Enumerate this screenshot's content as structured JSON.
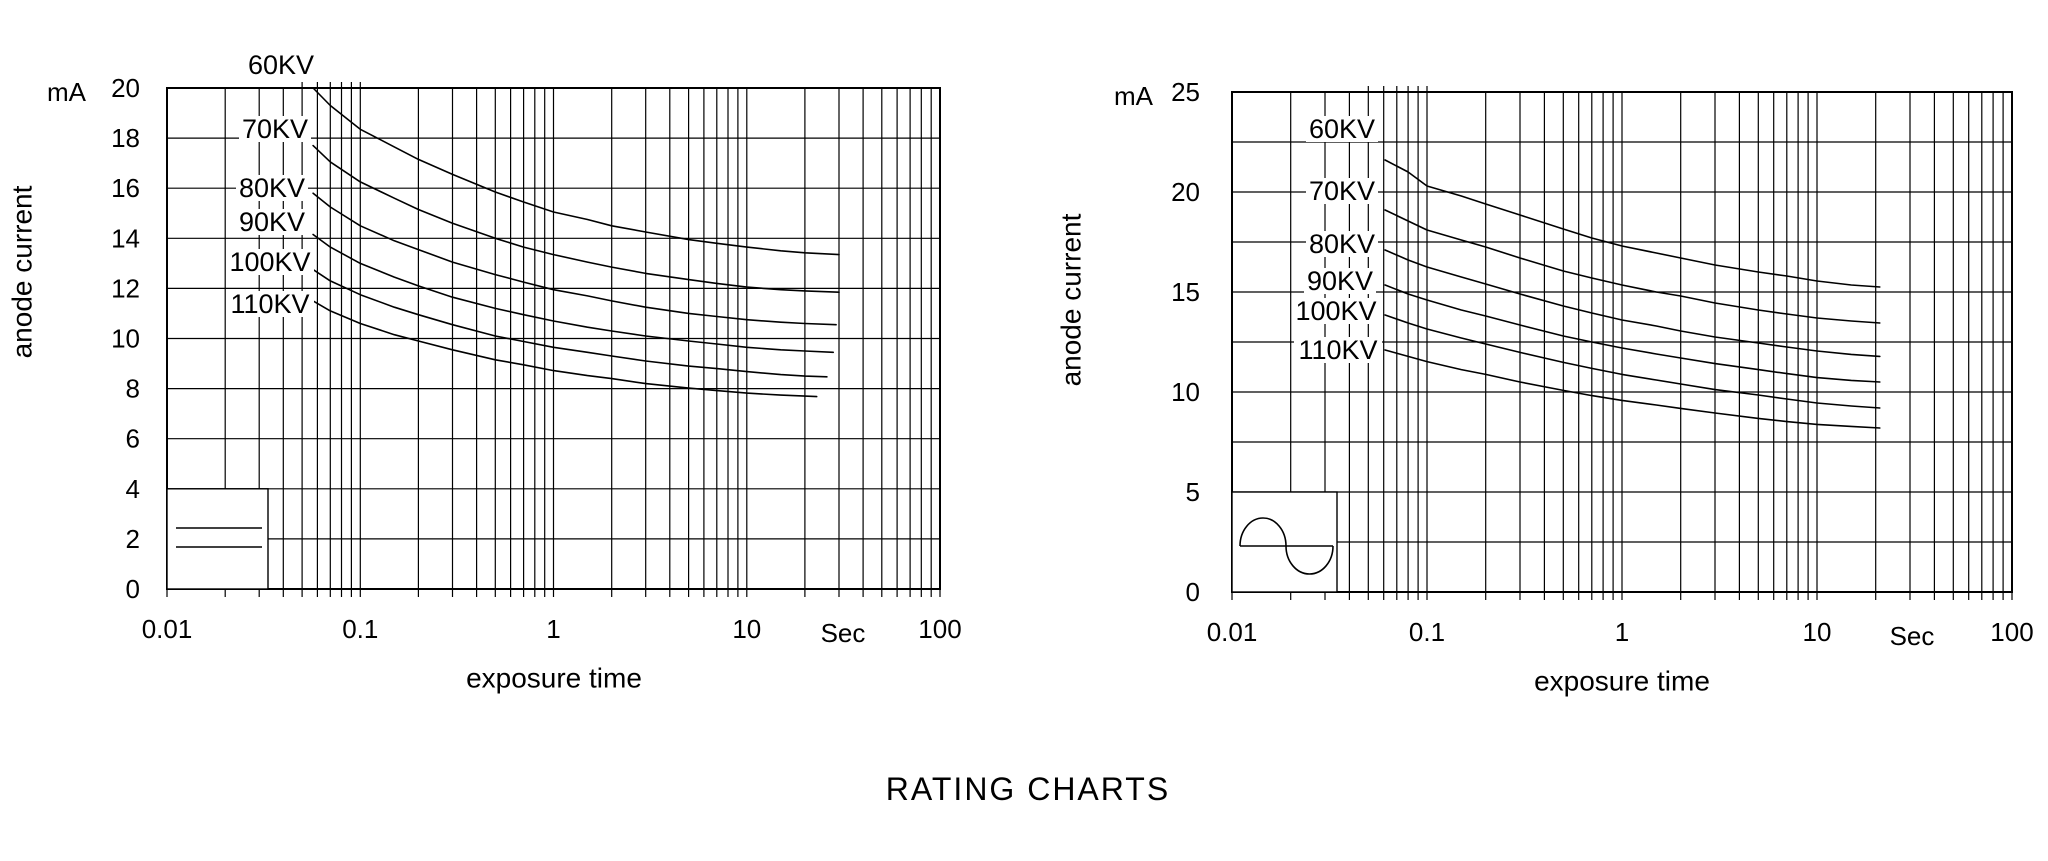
{
  "page_title": "RATING CHARTS",
  "chart_data": [
    {
      "type": "line",
      "position": "left",
      "x_scale": "log",
      "x_range": [
        0.01,
        100
      ],
      "y_range": [
        0,
        20
      ],
      "grid": true,
      "x_axis_label": "exposure time",
      "y_axis_label": "anode current",
      "y_unit": "mA",
      "x_unit_label": "Sec",
      "x_tick_labels": [
        "0.01",
        "0.1",
        "1",
        "10",
        "100"
      ],
      "y_tick_labels": [
        "0",
        "2",
        "4",
        "6",
        "8",
        "10",
        "12",
        "14",
        "16",
        "18",
        "20"
      ],
      "y_grid_step": 2,
      "waveform_symbol": "constant-potential-dc",
      "series": [
        {
          "name": "60KV",
          "points": [
            [
              0.057,
              20
            ],
            [
              0.07,
              19.3
            ],
            [
              0.1,
              18.35
            ],
            [
              0.15,
              17.65
            ],
            [
              0.2,
              17.15
            ],
            [
              0.3,
              16.55
            ],
            [
              0.5,
              15.85
            ],
            [
              0.7,
              15.45
            ],
            [
              1,
              15.05
            ],
            [
              1.5,
              14.75
            ],
            [
              2,
              14.5
            ],
            [
              3,
              14.25
            ],
            [
              5,
              13.95
            ],
            [
              7,
              13.8
            ],
            [
              10,
              13.65
            ],
            [
              15,
              13.5
            ],
            [
              20,
              13.42
            ],
            [
              30,
              13.35
            ]
          ]
        },
        {
          "name": "70KV",
          "points": [
            [
              0.057,
              17.7
            ],
            [
              0.07,
              17.05
            ],
            [
              0.1,
              16.25
            ],
            [
              0.15,
              15.6
            ],
            [
              0.2,
              15.15
            ],
            [
              0.3,
              14.6
            ],
            [
              0.5,
              14.0
            ],
            [
              0.7,
              13.65
            ],
            [
              1,
              13.35
            ],
            [
              1.5,
              13.05
            ],
            [
              2,
              12.85
            ],
            [
              3,
              12.6
            ],
            [
              5,
              12.35
            ],
            [
              7,
              12.2
            ],
            [
              10,
              12.05
            ],
            [
              15,
              11.95
            ],
            [
              20,
              11.9
            ],
            [
              30,
              11.85
            ]
          ]
        },
        {
          "name": "80KV",
          "points": [
            [
              0.057,
              15.8
            ],
            [
              0.07,
              15.25
            ],
            [
              0.1,
              14.5
            ],
            [
              0.15,
              13.9
            ],
            [
              0.2,
              13.55
            ],
            [
              0.3,
              13.05
            ],
            [
              0.5,
              12.55
            ],
            [
              0.7,
              12.25
            ],
            [
              1,
              11.95
            ],
            [
              1.5,
              11.7
            ],
            [
              2,
              11.5
            ],
            [
              3,
              11.25
            ],
            [
              5,
              11.0
            ],
            [
              7,
              10.88
            ],
            [
              10,
              10.75
            ],
            [
              15,
              10.65
            ],
            [
              20,
              10.6
            ],
            [
              29,
              10.55
            ]
          ]
        },
        {
          "name": "90KV",
          "points": [
            [
              0.057,
              14.15
            ],
            [
              0.07,
              13.65
            ],
            [
              0.1,
              13.0
            ],
            [
              0.15,
              12.45
            ],
            [
              0.2,
              12.1
            ],
            [
              0.3,
              11.65
            ],
            [
              0.5,
              11.2
            ],
            [
              0.7,
              10.95
            ],
            [
              1,
              10.7
            ],
            [
              1.5,
              10.45
            ],
            [
              2,
              10.3
            ],
            [
              3,
              10.1
            ],
            [
              5,
              9.9
            ],
            [
              7,
              9.78
            ],
            [
              10,
              9.65
            ],
            [
              15,
              9.55
            ],
            [
              20,
              9.5
            ],
            [
              28,
              9.45
            ]
          ]
        },
        {
          "name": "100KV",
          "points": [
            [
              0.057,
              12.75
            ],
            [
              0.07,
              12.3
            ],
            [
              0.1,
              11.75
            ],
            [
              0.15,
              11.25
            ],
            [
              0.2,
              10.95
            ],
            [
              0.3,
              10.55
            ],
            [
              0.5,
              10.1
            ],
            [
              0.7,
              9.88
            ],
            [
              1,
              9.65
            ],
            [
              1.5,
              9.45
            ],
            [
              2,
              9.3
            ],
            [
              3,
              9.1
            ],
            [
              5,
              8.9
            ],
            [
              7,
              8.8
            ],
            [
              10,
              8.68
            ],
            [
              15,
              8.56
            ],
            [
              20,
              8.5
            ],
            [
              26,
              8.47
            ]
          ]
        },
        {
          "name": "110KV",
          "points": [
            [
              0.057,
              11.5
            ],
            [
              0.07,
              11.1
            ],
            [
              0.1,
              10.6
            ],
            [
              0.15,
              10.15
            ],
            [
              0.2,
              9.9
            ],
            [
              0.3,
              9.55
            ],
            [
              0.5,
              9.15
            ],
            [
              0.7,
              8.95
            ],
            [
              1,
              8.72
            ],
            [
              1.5,
              8.52
            ],
            [
              2,
              8.4
            ],
            [
              3,
              8.2
            ],
            [
              5,
              8.02
            ],
            [
              7,
              7.92
            ],
            [
              10,
              7.82
            ],
            [
              15,
              7.74
            ],
            [
              20,
              7.7
            ],
            [
              23,
              7.68
            ]
          ]
        }
      ]
    },
    {
      "type": "line",
      "position": "right",
      "x_scale": "log",
      "x_range": [
        0.01,
        100
      ],
      "y_range": [
        0,
        25
      ],
      "grid": true,
      "x_axis_label": "exposure time",
      "y_axis_label": "anode current",
      "y_unit": "mA",
      "x_unit_label": "Sec",
      "x_tick_labels": [
        "0.01",
        "0.1",
        "1",
        "10",
        "100"
      ],
      "y_tick_labels": [
        "0",
        "5",
        "10",
        "15",
        "20",
        "25"
      ],
      "y_grid_step": 2.5,
      "waveform_symbol": "sine-wave-ac",
      "series": [
        {
          "name": "60KV",
          "points": [
            [
              0.061,
              21.6
            ],
            [
              0.08,
              21.0
            ],
            [
              0.1,
              20.3
            ],
            [
              0.15,
              19.8
            ],
            [
              0.2,
              19.4
            ],
            [
              0.3,
              18.85
            ],
            [
              0.5,
              18.15
            ],
            [
              0.7,
              17.7
            ],
            [
              1,
              17.3
            ],
            [
              1.5,
              16.95
            ],
            [
              2,
              16.7
            ],
            [
              3,
              16.35
            ],
            [
              5,
              16.0
            ],
            [
              7,
              15.8
            ],
            [
              10,
              15.55
            ],
            [
              15,
              15.35
            ],
            [
              21,
              15.25
            ]
          ]
        },
        {
          "name": "70KV",
          "points": [
            [
              0.061,
              19.1
            ],
            [
              0.08,
              18.55
            ],
            [
              0.1,
              18.1
            ],
            [
              0.15,
              17.6
            ],
            [
              0.2,
              17.25
            ],
            [
              0.3,
              16.7
            ],
            [
              0.5,
              16.05
            ],
            [
              0.7,
              15.7
            ],
            [
              1,
              15.35
            ],
            [
              1.5,
              15.0
            ],
            [
              2,
              14.8
            ],
            [
              3,
              14.45
            ],
            [
              5,
              14.1
            ],
            [
              7,
              13.9
            ],
            [
              10,
              13.7
            ],
            [
              15,
              13.55
            ],
            [
              21,
              13.45
            ]
          ]
        },
        {
          "name": "80KV",
          "points": [
            [
              0.061,
              17.1
            ],
            [
              0.08,
              16.6
            ],
            [
              0.1,
              16.25
            ],
            [
              0.15,
              15.75
            ],
            [
              0.2,
              15.4
            ],
            [
              0.3,
              14.9
            ],
            [
              0.5,
              14.3
            ],
            [
              0.7,
              13.95
            ],
            [
              1,
              13.6
            ],
            [
              1.5,
              13.3
            ],
            [
              2,
              13.05
            ],
            [
              3,
              12.75
            ],
            [
              5,
              12.45
            ],
            [
              7,
              12.25
            ],
            [
              10,
              12.05
            ],
            [
              15,
              11.88
            ],
            [
              21,
              11.78
            ]
          ]
        },
        {
          "name": "90KV",
          "points": [
            [
              0.061,
              15.35
            ],
            [
              0.08,
              14.9
            ],
            [
              0.1,
              14.6
            ],
            [
              0.15,
              14.1
            ],
            [
              0.2,
              13.8
            ],
            [
              0.3,
              13.35
            ],
            [
              0.5,
              12.8
            ],
            [
              0.7,
              12.5
            ],
            [
              1,
              12.2
            ],
            [
              1.5,
              11.9
            ],
            [
              2,
              11.7
            ],
            [
              3,
              11.42
            ],
            [
              5,
              11.12
            ],
            [
              7,
              10.92
            ],
            [
              10,
              10.72
            ],
            [
              15,
              10.58
            ],
            [
              21,
              10.5
            ]
          ]
        },
        {
          "name": "100KV",
          "points": [
            [
              0.061,
              13.85
            ],
            [
              0.08,
              13.45
            ],
            [
              0.1,
              13.15
            ],
            [
              0.15,
              12.7
            ],
            [
              0.2,
              12.4
            ],
            [
              0.3,
              11.98
            ],
            [
              0.5,
              11.48
            ],
            [
              0.7,
              11.18
            ],
            [
              1,
              10.88
            ],
            [
              1.5,
              10.6
            ],
            [
              2,
              10.4
            ],
            [
              3,
              10.12
            ],
            [
              5,
              9.85
            ],
            [
              7,
              9.65
            ],
            [
              10,
              9.45
            ],
            [
              15,
              9.3
            ],
            [
              21,
              9.2
            ]
          ]
        },
        {
          "name": "110KV",
          "points": [
            [
              0.061,
              12.1
            ],
            [
              0.08,
              11.78
            ],
            [
              0.1,
              11.52
            ],
            [
              0.15,
              11.12
            ],
            [
              0.2,
              10.88
            ],
            [
              0.3,
              10.5
            ],
            [
              0.5,
              10.08
            ],
            [
              0.7,
              9.82
            ],
            [
              1,
              9.58
            ],
            [
              1.5,
              9.35
            ],
            [
              2,
              9.18
            ],
            [
              3,
              8.95
            ],
            [
              5,
              8.68
            ],
            [
              7,
              8.52
            ],
            [
              10,
              8.38
            ],
            [
              15,
              8.28
            ],
            [
              21,
              8.2
            ]
          ]
        }
      ]
    }
  ]
}
